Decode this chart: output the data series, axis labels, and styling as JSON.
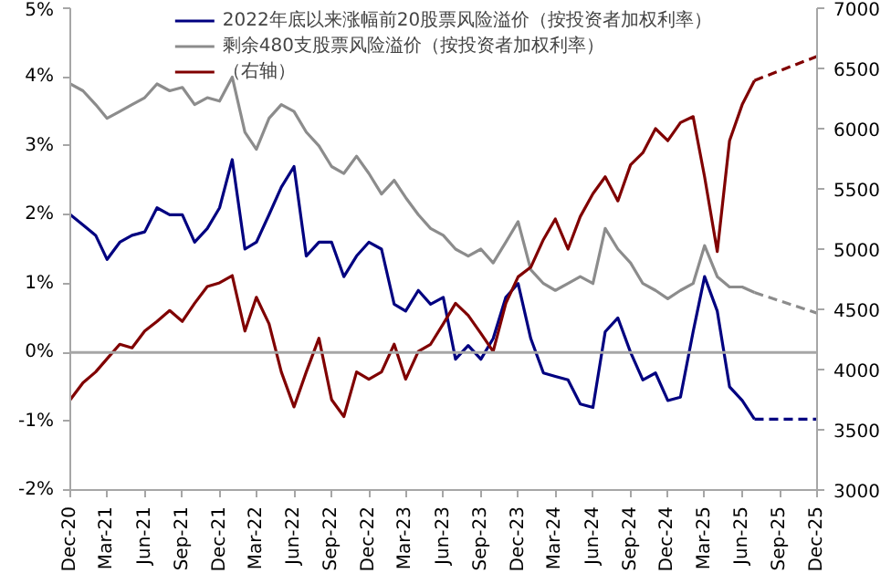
{
  "chart_data": {
    "type": "line",
    "xlim": [
      "2020-12",
      "2025-12"
    ],
    "xticks": [
      {
        "value": "2020-12",
        "label": "Dec-20"
      },
      {
        "value": "2021-03",
        "label": "Mar-21"
      },
      {
        "value": "2021-06",
        "label": "Jun-21"
      },
      {
        "value": "2021-09",
        "label": "Sep-21"
      },
      {
        "value": "2021-12",
        "label": "Dec-21"
      },
      {
        "value": "2022-03",
        "label": "Mar-22"
      },
      {
        "value": "2022-06",
        "label": "Jun-22"
      },
      {
        "value": "2022-09",
        "label": "Sep-22"
      },
      {
        "value": "2022-12",
        "label": "Dec-22"
      },
      {
        "value": "2023-03",
        "label": "Mar-23"
      },
      {
        "value": "2023-06",
        "label": "Jun-23"
      },
      {
        "value": "2023-09",
        "label": "Sep-23"
      },
      {
        "value": "2023-12",
        "label": "Dec-23"
      },
      {
        "value": "2024-03",
        "label": "Mar-24"
      },
      {
        "value": "2024-06",
        "label": "Jun-24"
      },
      {
        "value": "2024-09",
        "label": "Sep-24"
      },
      {
        "value": "2024-12",
        "label": "Dec-24"
      },
      {
        "value": "2025-03",
        "label": "Mar-25"
      },
      {
        "value": "2025-06",
        "label": "Jun-25"
      },
      {
        "value": "2025-09",
        "label": "Sep-25"
      },
      {
        "value": "2025-12",
        "label": "Dec-25"
      }
    ],
    "ylim": [
      -2,
      5
    ],
    "yticks": [
      {
        "value": -2,
        "label": "-2%"
      },
      {
        "value": -1,
        "label": "-1%"
      },
      {
        "value": 0,
        "label": "0%"
      },
      {
        "value": 1,
        "label": "1%"
      },
      {
        "value": 2,
        "label": "2%"
      },
      {
        "value": 3,
        "label": "3%"
      },
      {
        "value": 4,
        "label": "4%"
      },
      {
        "value": 5,
        "label": "5%"
      }
    ],
    "y2lim": [
      3000,
      7000
    ],
    "y2ticks": [
      3000,
      3500,
      4000,
      4500,
      5000,
      5500,
      6000,
      6500,
      7000
    ],
    "legend": "top",
    "ref_lines": [
      {
        "axis": "y",
        "value": 0,
        "color": "#a6a6a6"
      }
    ],
    "x": [
      "2020-12",
      "2021-01",
      "2021-02",
      "2021-03",
      "2021-04",
      "2021-05",
      "2021-06",
      "2021-07",
      "2021-08",
      "2021-09",
      "2021-10",
      "2021-11",
      "2021-12",
      "2022-01",
      "2022-02",
      "2022-03",
      "2022-04",
      "2022-05",
      "2022-06",
      "2022-07",
      "2022-08",
      "2022-09",
      "2022-10",
      "2022-11",
      "2022-12",
      "2023-01",
      "2023-02",
      "2023-03",
      "2023-04",
      "2023-05",
      "2023-06",
      "2023-07",
      "2023-08",
      "2023-09",
      "2023-10",
      "2023-11",
      "2023-12",
      "2024-01",
      "2024-02",
      "2024-03",
      "2024-04",
      "2024-05",
      "2024-06",
      "2024-07",
      "2024-08",
      "2024-09",
      "2024-10",
      "2024-11",
      "2024-12",
      "2025-01",
      "2025-02",
      "2025-03",
      "2025-04",
      "2025-05",
      "2025-06",
      "2025-07"
    ],
    "series": [
      {
        "name": "2022年底以来涨幅前20股票风险溢价（按投资者加权利率）",
        "color": "#000080",
        "values": [
          2.0,
          1.85,
          1.7,
          1.35,
          1.6,
          1.7,
          1.75,
          2.1,
          2.0,
          2.0,
          1.6,
          1.8,
          2.1,
          2.8,
          1.5,
          1.6,
          2.0,
          2.4,
          2.7,
          1.4,
          1.6,
          1.6,
          1.1,
          1.4,
          1.6,
          1.5,
          0.7,
          0.6,
          0.9,
          0.7,
          0.8,
          -0.1,
          0.1,
          -0.1,
          0.2,
          0.8,
          1.0,
          0.2,
          -0.3,
          -0.35,
          -0.4,
          -0.75,
          -0.8,
          0.3,
          0.5,
          0.0,
          -0.4,
          -0.3,
          -0.7,
          -0.65,
          0.3,
          1.1,
          0.6,
          -0.5,
          -0.7,
          -0.97
        ]
      },
      {
        "name": "剩余480支股票风险溢价（按投资者加权利率）",
        "color": "#8c8c8c",
        "values": [
          3.9,
          3.8,
          3.6,
          3.4,
          3.5,
          3.6,
          3.7,
          3.9,
          3.8,
          3.85,
          3.6,
          3.7,
          3.65,
          4.0,
          3.2,
          2.95,
          3.4,
          3.6,
          3.5,
          3.2,
          3.0,
          2.7,
          2.6,
          2.85,
          2.6,
          2.3,
          2.5,
          2.25,
          2.0,
          1.8,
          1.7,
          1.5,
          1.4,
          1.5,
          1.3,
          1.6,
          1.9,
          1.2,
          1.0,
          0.9,
          1.0,
          1.1,
          1.0,
          1.8,
          1.5,
          1.3,
          1.0,
          0.9,
          0.78,
          0.9,
          1.0,
          1.55,
          1.1,
          0.95,
          0.95,
          0.87
        ]
      },
      {
        "name": "（右轴）",
        "color": "#800000",
        "axis": "y2",
        "values": [
          3750,
          3890,
          3980,
          4090,
          4210,
          4180,
          4320,
          4400,
          4490,
          4400,
          4550,
          4690,
          4720,
          4780,
          4320,
          4600,
          4380,
          3980,
          3690,
          3980,
          4260,
          3750,
          3610,
          3980,
          3920,
          3980,
          4210,
          3920,
          4150,
          4210,
          4380,
          4550,
          4450,
          4300,
          4150,
          4550,
          4770,
          4850,
          5080,
          5250,
          5000,
          5270,
          5460,
          5600,
          5400,
          5700,
          5800,
          6000,
          5900,
          6050,
          6100,
          5600,
          4980,
          5900,
          6200,
          6400
        ]
      },
      {
        "color": "#000080",
        "line_style": "dashed",
        "x": [
          "2025-07",
          "2025-12"
        ],
        "values": [
          -0.97,
          -0.97
        ]
      },
      {
        "color": "#8c8c8c",
        "line_style": "dashed",
        "x": [
          "2025-07",
          "2025-12"
        ],
        "values": [
          0.87,
          0.57
        ]
      },
      {
        "color": "#800000",
        "line_style": "dashed",
        "axis": "y2",
        "x": [
          "2025-07",
          "2025-12"
        ],
        "values": [
          6400,
          6600
        ]
      }
    ]
  }
}
